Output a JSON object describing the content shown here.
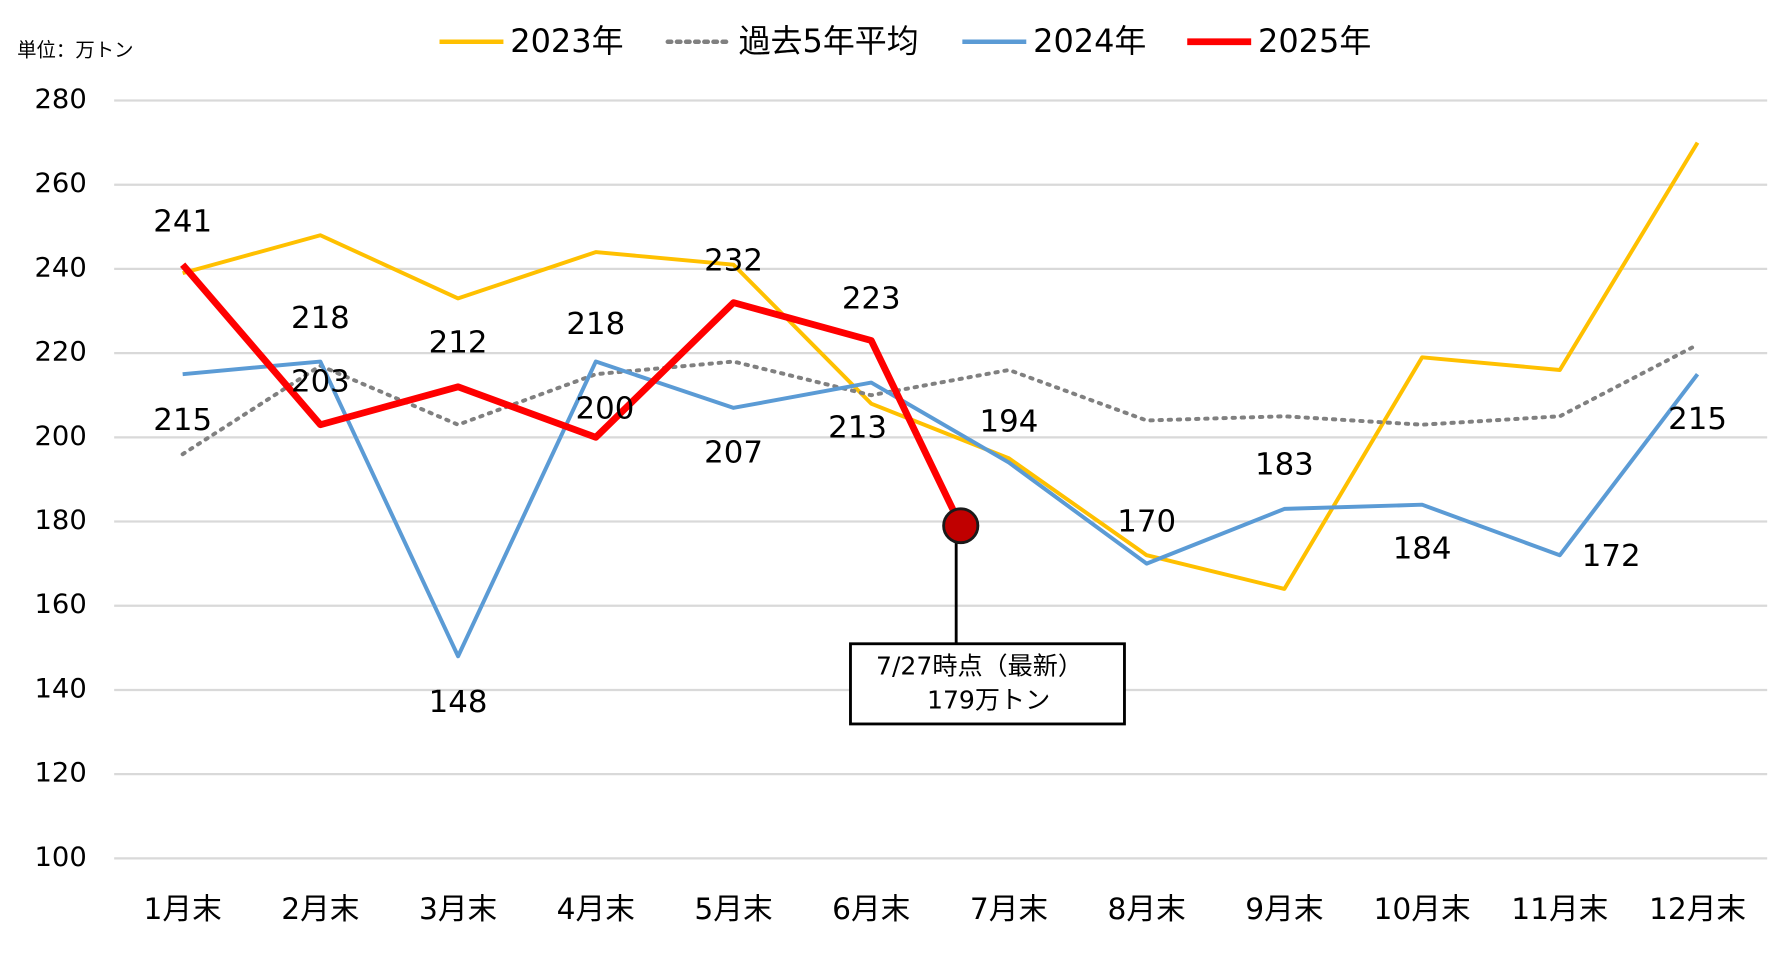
{
  "chart_data": {
    "type": "line",
    "unit_label": "単位：万トン",
    "categories": [
      "1月末",
      "2月末",
      "3月末",
      "4月末",
      "5月末",
      "6月末",
      "7月末",
      "8月末",
      "9月末",
      "10月末",
      "11月末",
      "12月末"
    ],
    "series": [
      {
        "name": "2023年",
        "color": "#ffc000",
        "linestyle": "solid",
        "values": [
          239,
          248,
          233,
          244,
          241,
          208,
          195,
          172,
          164,
          219,
          216,
          270
        ]
      },
      {
        "name": "過去5年平均",
        "color": "#808080",
        "linestyle": "dotted",
        "values": [
          196,
          217,
          203,
          215,
          218,
          210,
          216,
          204,
          205,
          203,
          205,
          222
        ]
      },
      {
        "name": "2024年",
        "color": "#5b9bd5",
        "linestyle": "solid",
        "values": [
          215,
          218,
          148,
          218,
          207,
          213,
          194,
          170,
          183,
          184,
          172,
          215
        ],
        "data_labels": true
      },
      {
        "name": "2025年",
        "color": "#ff0000",
        "linestyle": "solid",
        "values": [
          241,
          203,
          212,
          200,
          232,
          223,
          179,
          null,
          null,
          null,
          null,
          null
        ],
        "data_labels": true
      }
    ],
    "annotation": {
      "lines": [
        "7/27時点（最新）",
        "179万トン"
      ]
    },
    "ylim": [
      100,
      280
    ],
    "yticks": [
      100,
      120,
      140,
      160,
      180,
      200,
      220,
      240,
      260,
      280
    ],
    "grid": true,
    "legend": "top"
  }
}
